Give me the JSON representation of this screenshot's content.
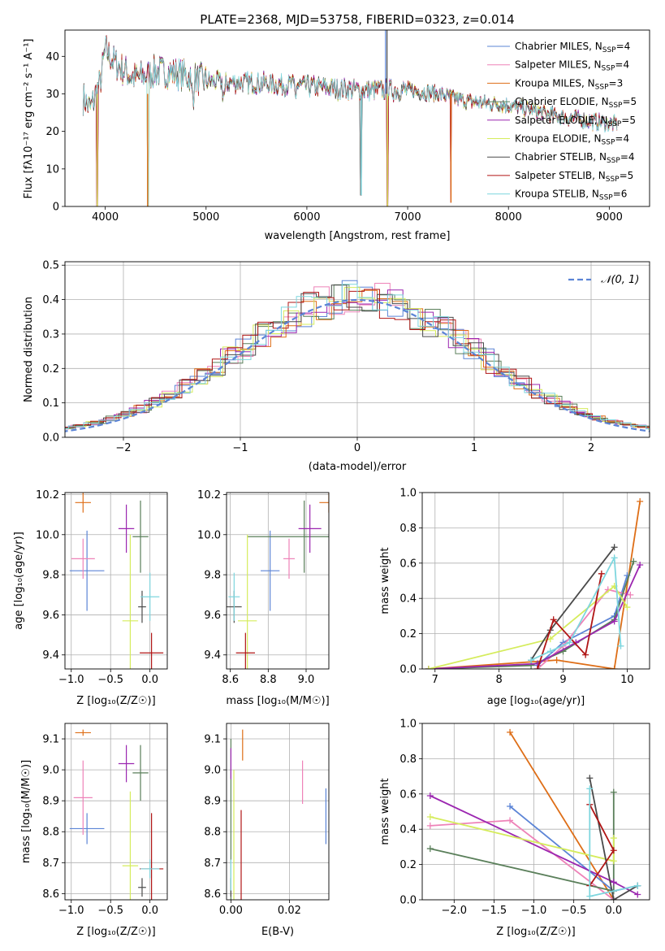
{
  "title": "PLATE=2368, MJD=53758, FIBERID=0323, z=0.014",
  "colors": {
    "ChabMILES": "#5b84d6",
    "SalpMILES": "#ee82b8",
    "KroupaMILES": "#de6e17",
    "ChabELODIE": "#5a7f5a",
    "SalpELODIE": "#9b26b0",
    "KroupaELODIE": "#d5ec5c",
    "ChabSTELIB": "#4a4a4a",
    "SalpSTELIB": "#b01515",
    "KroupaSTELIB": "#7ed6de"
  },
  "chart_data": [
    {
      "type": "line",
      "xlabel": "wavelength [Angstrom, rest frame]",
      "ylabel": "Flux [f_λ 10^-17 erg cm^-2 s^-1 A^-1]",
      "xlim": [
        3600,
        9400
      ],
      "ylim": [
        0,
        47
      ],
      "xticks": [
        4000,
        5000,
        6000,
        7000,
        8000,
        9000
      ],
      "yticks": [
        0,
        10,
        20,
        30,
        40
      ],
      "grid": false,
      "legend": "right",
      "series": [
        {
          "name": "Chabrier MILES, N_SSP=4",
          "key": "ChabMILES"
        },
        {
          "name": "Salpeter MILES, N_SSP=4",
          "key": "SalpMILES"
        },
        {
          "name": "Kroupa MILES, N_SSP=3",
          "key": "KroupaMILES"
        },
        {
          "name": "Chabrier ELODIE, N_SSP=5",
          "key": "ChabELODIE"
        },
        {
          "name": "Salpeter ELODIE, N_SSP=5",
          "key": "SalpELODIE"
        },
        {
          "name": "Kroupa ELODIE, N_SSP=4",
          "key": "KroupaELODIE"
        },
        {
          "name": "Chabrier STELIB, N_SSP=4",
          "key": "ChabSTELIB"
        },
        {
          "name": "Salpeter STELIB, N_SSP=5",
          "key": "SalpSTELIB"
        },
        {
          "name": "Kroupa STELIB, N_SSP=6",
          "key": "KroupaSTELIB"
        }
      ],
      "approx_continuum": [
        [
          3780,
          29
        ],
        [
          3850,
          26
        ],
        [
          3950,
          33
        ],
        [
          4000,
          42
        ],
        [
          4100,
          38
        ],
        [
          4200,
          36
        ],
        [
          4300,
          34
        ],
        [
          4500,
          36
        ],
        [
          4700,
          35.5
        ],
        [
          5000,
          33.5
        ],
        [
          5200,
          33
        ],
        [
          5500,
          33
        ],
        [
          6000,
          32
        ],
        [
          6500,
          31
        ],
        [
          7000,
          31
        ],
        [
          7300,
          30
        ],
        [
          7600,
          28
        ],
        [
          8000,
          27
        ],
        [
          8500,
          24
        ],
        [
          9000,
          22
        ],
        [
          9080,
          22
        ]
      ],
      "spikes_down": [
        [
          3920,
          0
        ],
        [
          4420,
          0
        ],
        [
          6540,
          3
        ],
        [
          6800,
          0
        ],
        [
          7430,
          1
        ]
      ]
    },
    {
      "type": "line",
      "xlabel": "(data-model)/error",
      "ylabel": "Normed distribution",
      "xlim": [
        -2.5,
        2.5
      ],
      "ylim": [
        0,
        0.51
      ],
      "xticks": [
        -2,
        -1,
        0,
        1,
        2
      ],
      "yticks": [
        0.0,
        0.1,
        0.2,
        0.3,
        0.4,
        0.5
      ],
      "grid": true,
      "legend": "top-right",
      "reference": {
        "name": "𝒩(0, 1)",
        "mean": 0,
        "sigma": 1
      }
    },
    {
      "type": "scatter",
      "xlabel": "Z [log10(Z/Z⊙)]",
      "ylabel": "age [log10(age/yr)]",
      "xlim": [
        -1.08,
        0.22
      ],
      "ylim": [
        9.33,
        10.21
      ],
      "xticks": [
        -1.0,
        -0.5,
        0.0
      ],
      "yticks": [
        9.4,
        9.6,
        9.8,
        10.0,
        10.2
      ],
      "grid": true,
      "points": [
        {
          "key": "ChabMILES",
          "x": -0.8,
          "y": 9.82,
          "xerr": 0.22,
          "yerr": 0.2
        },
        {
          "key": "SalpMILES",
          "x": -0.85,
          "y": 9.88,
          "xerr": 0.15,
          "yerr": 0.1
        },
        {
          "key": "KroupaMILES",
          "x": -0.85,
          "y": 10.16,
          "xerr": 0.1,
          "yerr": 0.05
        },
        {
          "key": "ChabELODIE",
          "x": -0.12,
          "y": 9.99,
          "xerr": 0.1,
          "yerr": 0.18
        },
        {
          "key": "SalpELODIE",
          "x": -0.3,
          "y": 10.03,
          "xerr": 0.1,
          "yerr": 0.12
        },
        {
          "key": "KroupaELODIE",
          "x": -0.25,
          "y": 9.57,
          "xerr": 0.1,
          "yerr": 0.43
        },
        {
          "key": "ChabSTELIB",
          "x": -0.1,
          "y": 9.64,
          "xerr": 0.05,
          "yerr": 0.08
        },
        {
          "key": "SalpSTELIB",
          "x": 0.02,
          "y": 9.41,
          "xerr": 0.15,
          "yerr": 0.1
        },
        {
          "key": "KroupaSTELIB",
          "x": 0.0,
          "y": 9.69,
          "xerr": 0.12,
          "yerr": 0.12
        }
      ]
    },
    {
      "type": "scatter",
      "xlabel": "mass [log10(M/M⊙)]",
      "ylabel": "",
      "xlim": [
        8.58,
        9.12
      ],
      "ylim": [
        9.33,
        10.21
      ],
      "xticks": [
        8.6,
        8.8,
        9.0
      ],
      "yticks": [
        9.4,
        9.6,
        9.8,
        10.0,
        10.2
      ],
      "grid": true,
      "points": [
        {
          "key": "ChabMILES",
          "x": 8.81,
          "y": 9.82,
          "xerr": 0.05,
          "yerr": 0.2
        },
        {
          "key": "SalpMILES",
          "x": 8.91,
          "y": 9.88,
          "xerr": 0.03,
          "yerr": 0.1
        },
        {
          "key": "KroupaMILES",
          "x": 9.12,
          "y": 10.16,
          "xerr": 0.05,
          "yerr": 0.05
        },
        {
          "key": "ChabELODIE",
          "x": 8.99,
          "y": 9.99,
          "xerr": 0.3,
          "yerr": 0.18
        },
        {
          "key": "SalpELODIE",
          "x": 9.02,
          "y": 10.03,
          "xerr": 0.06,
          "yerr": 0.12
        },
        {
          "key": "KroupaELODIE",
          "x": 8.69,
          "y": 9.57,
          "xerr": 0.05,
          "yerr": 0.43
        },
        {
          "key": "ChabSTELIB",
          "x": 8.62,
          "y": 9.64,
          "xerr": 0.04,
          "yerr": 0.08
        },
        {
          "key": "SalpSTELIB",
          "x": 8.68,
          "y": 9.41,
          "xerr": 0.05,
          "yerr": 0.1
        },
        {
          "key": "KroupaSTELIB",
          "x": 8.62,
          "y": 9.69,
          "xerr": 0.03,
          "yerr": 0.12
        }
      ]
    },
    {
      "type": "line",
      "xlabel": "age [log10(age/yr)]",
      "ylabel": "mass weight",
      "xlim": [
        6.8,
        10.35
      ],
      "ylim": [
        0,
        1
      ],
      "xticks": [
        7,
        8,
        9,
        10
      ],
      "yticks": [
        0.0,
        0.2,
        0.4,
        0.6,
        0.8,
        1.0
      ],
      "grid": true,
      "series": [
        {
          "key": "KroupaMILES",
          "x": [
            6.9,
            8.9,
            9.8,
            10.2
          ],
          "y": [
            0.0,
            0.05,
            0.0,
            0.95
          ]
        },
        {
          "key": "ChabMILES",
          "x": [
            8.6,
            9.0,
            9.8,
            10.0
          ],
          "y": [
            0.02,
            0.15,
            0.3,
            0.53
          ]
        },
        {
          "key": "SalpMILES",
          "x": [
            8.6,
            9.0,
            9.7,
            10.05
          ],
          "y": [
            0.0,
            0.13,
            0.45,
            0.42
          ]
        },
        {
          "key": "ChabELODIE",
          "x": [
            6.9,
            8.5,
            9.0,
            9.8,
            10.1
          ],
          "y": [
            0.0,
            0.02,
            0.1,
            0.28,
            0.61
          ]
        },
        {
          "key": "SalpELODIE",
          "x": [
            6.9,
            8.6,
            9.2,
            9.8,
            10.2
          ],
          "y": [
            0.0,
            0.03,
            0.15,
            0.27,
            0.59
          ]
        },
        {
          "key": "KroupaELODIE",
          "x": [
            6.9,
            8.8,
            9.8,
            10.0
          ],
          "y": [
            0.0,
            0.17,
            0.47,
            0.35
          ]
        },
        {
          "key": "ChabSTELIB",
          "x": [
            8.5,
            8.8,
            9.8
          ],
          "y": [
            0.05,
            0.22,
            0.69
          ]
        },
        {
          "key": "SalpSTELIB",
          "x": [
            8.6,
            8.85,
            9.35,
            9.6
          ],
          "y": [
            0.0,
            0.28,
            0.08,
            0.54
          ]
        },
        {
          "key": "KroupaSTELIB",
          "x": [
            8.5,
            8.8,
            9.1,
            9.8,
            9.9
          ],
          "y": [
            0.05,
            0.1,
            0.15,
            0.63,
            0.13
          ]
        }
      ]
    },
    {
      "type": "scatter",
      "xlabel": "Z [log10(Z/Z⊙)]",
      "ylabel": "mass [log10(M/M⊙)]",
      "xlim": [
        -1.08,
        0.22
      ],
      "ylim": [
        8.58,
        9.15
      ],
      "xticks": [
        -1.0,
        -0.5,
        0.0
      ],
      "yticks": [
        8.6,
        8.7,
        8.8,
        8.9,
        9.0,
        9.1
      ],
      "grid": true,
      "points": [
        {
          "key": "ChabMILES",
          "x": -0.8,
          "y": 8.81,
          "xerr": 0.22,
          "yerr": 0.05
        },
        {
          "key": "SalpMILES",
          "x": -0.85,
          "y": 8.91,
          "xerr": 0.12,
          "yerr": 0.12
        },
        {
          "key": "KroupaMILES",
          "x": -0.85,
          "y": 9.12,
          "xerr": 0.1,
          "yerr": 0.01
        },
        {
          "key": "ChabELODIE",
          "x": -0.12,
          "y": 8.99,
          "xerr": 0.1,
          "yerr": 0.09
        },
        {
          "key": "SalpELODIE",
          "x": -0.3,
          "y": 9.02,
          "xerr": 0.1,
          "yerr": 0.06
        },
        {
          "key": "KroupaELODIE",
          "x": -0.25,
          "y": 8.69,
          "xerr": 0.1,
          "yerr": 0.24
        },
        {
          "key": "ChabSTELIB",
          "x": -0.1,
          "y": 8.62,
          "xerr": 0.05,
          "yerr": 0.03
        },
        {
          "key": "SalpSTELIB",
          "x": 0.02,
          "y": 8.68,
          "xerr": 0.15,
          "yerr": 0.18
        },
        {
          "key": "KroupaSTELIB",
          "x": 0.0,
          "y": 8.68,
          "xerr": 0.12,
          "yerr": 0.03
        }
      ]
    },
    {
      "type": "scatter",
      "xlabel": "E(B-V)",
      "ylabel": "",
      "xlim": [
        -0.0015,
        0.0335
      ],
      "ylim": [
        8.58,
        9.15
      ],
      "xticks": [
        0.0,
        0.02
      ],
      "yticks": [
        8.6,
        8.7,
        8.8,
        8.9,
        9.0,
        9.1
      ],
      "grid": true,
      "points": [
        {
          "key": "ChabMILES",
          "x": 0.0325,
          "y": 8.85,
          "yerr": 0.09
        },
        {
          "key": "SalpMILES",
          "x": 0.0245,
          "y": 8.96,
          "yerr": 0.07
        },
        {
          "key": "KroupaMILES",
          "x": 0.004,
          "y": 9.08,
          "yerr": 0.05
        },
        {
          "key": "ChabELODIE",
          "x": 0.0,
          "y": 8.75,
          "yerr": 0.35
        },
        {
          "key": "SalpELODIE",
          "x": 0.0,
          "y": 9.02,
          "yerr": 0.05
        },
        {
          "key": "KroupaELODIE",
          "x": 0.001,
          "y": 8.75,
          "yerr": 0.25
        },
        {
          "key": "ChabSTELIB",
          "x": 0.0,
          "y": 8.62,
          "yerr": 0.03
        },
        {
          "key": "SalpSTELIB",
          "x": 0.0035,
          "y": 8.72,
          "yerr": 0.15
        },
        {
          "key": "KroupaSTELIB",
          "x": 0.0,
          "y": 8.66,
          "yerr": 0.05
        }
      ]
    },
    {
      "type": "line",
      "xlabel": "Z [log10(Z/Z⊙)]",
      "ylabel": "mass weight",
      "xlim": [
        -2.4,
        0.45
      ],
      "ylim": [
        0,
        1
      ],
      "xticks": [
        -2.0,
        -1.5,
        -1.0,
        -0.5,
        0.0
      ],
      "yticks": [
        0.0,
        0.2,
        0.4,
        0.6,
        0.8,
        1.0
      ],
      "grid": true,
      "series": [
        {
          "key": "KroupaMILES",
          "x": [
            -1.3,
            0.0
          ],
          "y": [
            0.95,
            0.0
          ]
        },
        {
          "key": "ChabMILES",
          "x": [
            -1.3,
            0.0,
            0.3
          ],
          "y": [
            0.53,
            0.05,
            0.08
          ]
        },
        {
          "key": "SalpMILES",
          "x": [
            -2.3,
            -1.3,
            0.0
          ],
          "y": [
            0.42,
            0.45,
            0.0
          ]
        },
        {
          "key": "ChabELODIE",
          "x": [
            -2.3,
            0.0,
            0.0
          ],
          "y": [
            0.29,
            0.05,
            0.61
          ]
        },
        {
          "key": "SalpELODIE",
          "x": [
            -2.3,
            0.0,
            0.3
          ],
          "y": [
            0.59,
            0.1,
            0.03
          ]
        },
        {
          "key": "KroupaELODIE",
          "x": [
            -2.3,
            0.0,
            0.0
          ],
          "y": [
            0.47,
            0.22,
            0.35
          ]
        },
        {
          "key": "ChabSTELIB",
          "x": [
            -0.3,
            0.0,
            0.3
          ],
          "y": [
            0.69,
            0.0,
            0.08
          ]
        },
        {
          "key": "SalpSTELIB",
          "x": [
            -0.3,
            0.0,
            -0.3
          ],
          "y": [
            0.54,
            0.28,
            0.08
          ]
        },
        {
          "key": "KroupaSTELIB",
          "x": [
            -0.3,
            -0.3,
            0.3
          ],
          "y": [
            0.63,
            0.02,
            0.08
          ]
        }
      ]
    }
  ]
}
